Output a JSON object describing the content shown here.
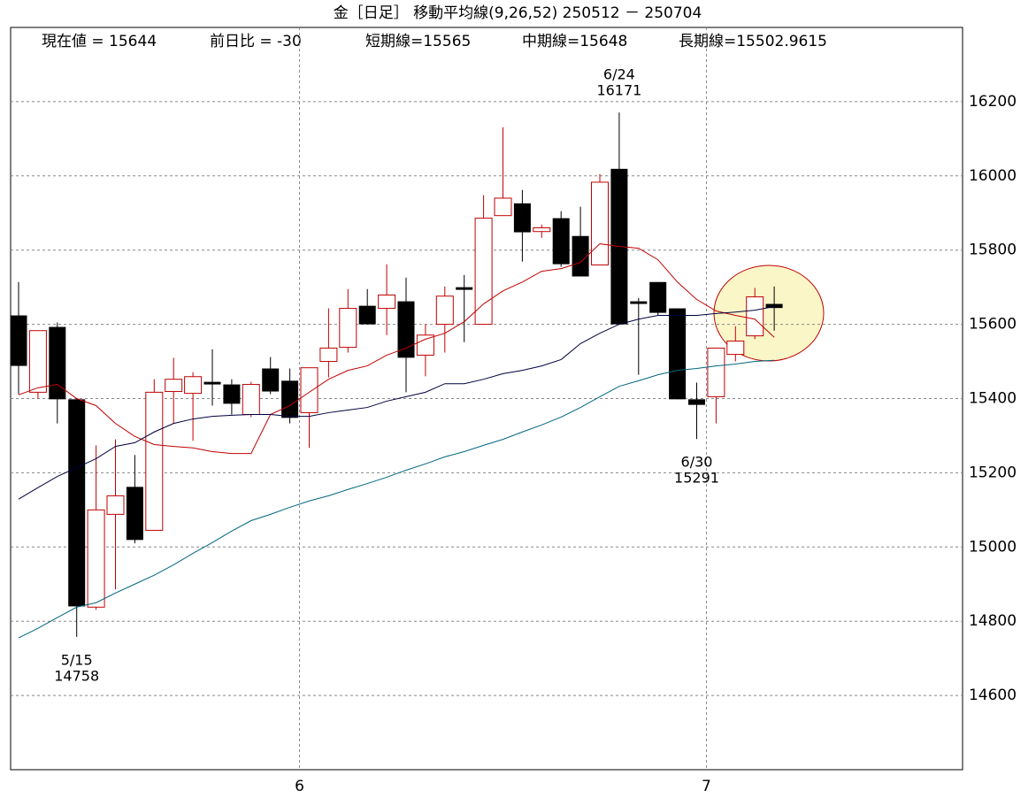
{
  "chart_data": {
    "type": "candlestick",
    "title": "金［日足］ 移動平均線(9,26,52)  250512 － 250704",
    "info": [
      "現在値 = 15644",
      "前日比 = -30",
      "短期線=15565",
      "中期線=15648",
      "長期線=15502.9615"
    ],
    "categories": [
      null,
      null,
      null,
      null,
      null,
      null,
      null,
      null,
      null,
      null,
      null,
      null,
      null,
      null,
      null,
      "6",
      null,
      null,
      null,
      null,
      null,
      null,
      null,
      null,
      null,
      null,
      null,
      null,
      null,
      null,
      null,
      null,
      null,
      null,
      null,
      null,
      "7",
      null,
      null,
      null
    ],
    "open": [
      15624,
      15417,
      15593,
      15398,
      14838,
      15088,
      15162,
      15045,
      15419,
      15414,
      15445,
      15438,
      15357,
      15481,
      15448,
      15362,
      15500,
      15538,
      15650,
      15643,
      15662,
      15517,
      15600,
      15700,
      15600,
      15893,
      15926,
      15850,
      15886,
      15838,
      15760,
      16019,
      15662,
      15714,
      15643,
      15398,
      15405,
      15519,
      15569,
      15655
    ],
    "high": [
      15714,
      15583,
      15605,
      15400,
      15274,
      15290,
      15248,
      15452,
      15510,
      15471,
      15533,
      15452,
      15445,
      15512,
      15481,
      15483,
      15643,
      15695,
      15695,
      15762,
      15726,
      15600,
      15702,
      15733,
      15948,
      16131,
      15962,
      15869,
      15905,
      15917,
      16005,
      16171,
      15671,
      15714,
      15643,
      15443,
      15536,
      15595,
      15698,
      15702
    ],
    "low": [
      15412,
      15400,
      15333,
      14758,
      14831,
      14886,
      15010,
      15045,
      15333,
      15286,
      15381,
      15357,
      15350,
      15412,
      15333,
      15267,
      15457,
      15524,
      15600,
      15571,
      15417,
      15460,
      15524,
      15552,
      15600,
      15893,
      15769,
      15833,
      15755,
      15729,
      15760,
      15600,
      15464,
      15624,
      15398,
      15291,
      15333,
      15500,
      15560,
      15583
    ],
    "close": [
      15488,
      15583,
      15398,
      14840,
      15100,
      15138,
      15019,
      15417,
      15452,
      15459,
      15438,
      15386,
      15438,
      15419,
      15348,
      15483,
      15536,
      15643,
      15600,
      15679,
      15510,
      15571,
      15676,
      15693,
      15886,
      15940,
      15848,
      15860,
      15762,
      15729,
      15983,
      15600,
      15655,
      15631,
      15398,
      15383,
      15536,
      15555,
      15674,
      15644
    ],
    "up_color": "#c00000",
    "down_color": "#000000",
    "series": [
      {
        "color": "#c00000",
        "values": [
          15410,
          15429,
          15438,
          15400,
          15381,
          15333,
          15298,
          15276,
          15271,
          15267,
          15257,
          15252,
          15252,
          15357,
          15381,
          15417,
          15452,
          15476,
          15488,
          15517,
          15536,
          15560,
          15576,
          15607,
          15655,
          15690,
          15714,
          15743,
          15750,
          15767,
          15817,
          15810,
          15805,
          15774,
          15714,
          15667,
          15636,
          15624,
          15614,
          15565
        ]
      },
      {
        "color": "#000040",
        "values": [
          15129,
          15160,
          15190,
          15214,
          15238,
          15271,
          15281,
          15310,
          15333,
          15345,
          15352,
          15355,
          15357,
          15357,
          15352,
          15352,
          15362,
          15369,
          15376,
          15393,
          15405,
          15417,
          15440,
          15440,
          15452,
          15467,
          15476,
          15488,
          15505,
          15548,
          15576,
          15600,
          15614,
          15624,
          15624,
          15624,
          15629,
          15633,
          15638,
          15648
        ]
      },
      {
        "color": "#006680",
        "values": [
          14755,
          14781,
          14810,
          14838,
          14850,
          14876,
          14900,
          14924,
          14952,
          14983,
          15012,
          15043,
          15071,
          15088,
          15107,
          15124,
          15138,
          15155,
          15171,
          15188,
          15207,
          15224,
          15243,
          15257,
          15274,
          15290,
          15310,
          15329,
          15350,
          15376,
          15405,
          15433,
          15448,
          15464,
          15476,
          15481,
          15488,
          15493,
          15500,
          15502.9615
        ]
      }
    ],
    "annotations": [
      {
        "text": "5/15",
        "value": 14758
      },
      {
        "text": "6/24",
        "value": 16171
      },
      {
        "text": "6/30",
        "value": 15291
      }
    ],
    "ylim": [
      14400,
      16400
    ],
    "yticks": [
      14600,
      14800,
      15000,
      15200,
      15400,
      15600,
      15800,
      16000,
      16200
    ],
    "grid": true
  }
}
